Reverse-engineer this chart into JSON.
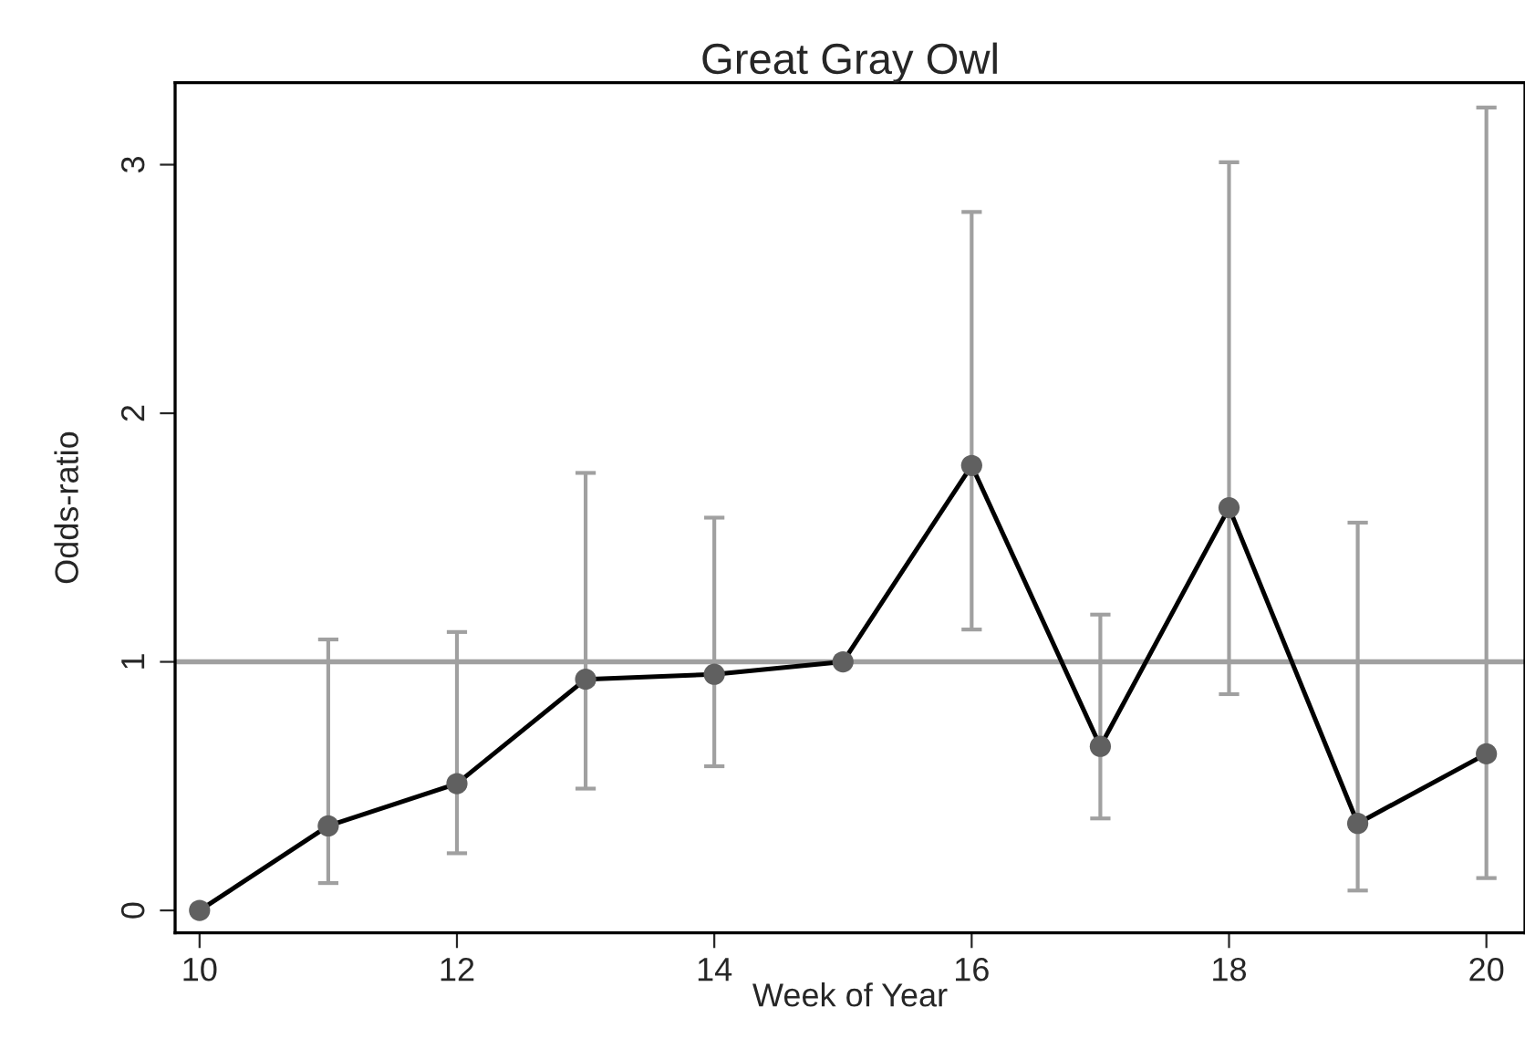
{
  "chart_data": {
    "type": "line",
    "title": "Great Gray Owl",
    "xlabel": "Week of Year",
    "ylabel": "Odds-ratio",
    "x": [
      10,
      11,
      12,
      13,
      14,
      15,
      16,
      17,
      18,
      19,
      20
    ],
    "series": [
      {
        "color": "#000000",
        "values": [
          0,
          0.34,
          0.51,
          0.93,
          0.95,
          1.0,
          1.79,
          0.66,
          1.62,
          0.35,
          0.63
        ],
        "errors": [
          null,
          [
            0.11,
            1.09
          ],
          [
            0.23,
            1.12
          ],
          [
            0.49,
            1.76
          ],
          [
            0.58,
            1.58
          ],
          null,
          [
            1.13,
            2.81
          ],
          [
            0.37,
            1.19
          ],
          [
            0.87,
            3.01
          ],
          [
            0.08,
            1.56
          ],
          [
            0.13,
            3.23
          ]
        ]
      }
    ],
    "marker": "circle",
    "line_style": "solid",
    "grid": false,
    "legend": false,
    "xlim": [
      9.81,
      20.3
    ],
    "ylim": [
      -0.09,
      3.33
    ],
    "xticks": [
      10,
      12,
      14,
      16,
      18,
      20
    ],
    "yticks": [
      0,
      1,
      2,
      3
    ],
    "ref_lines": [
      {
        "axis": "y",
        "value": 1,
        "color": "#a0a0a0"
      }
    ]
  }
}
